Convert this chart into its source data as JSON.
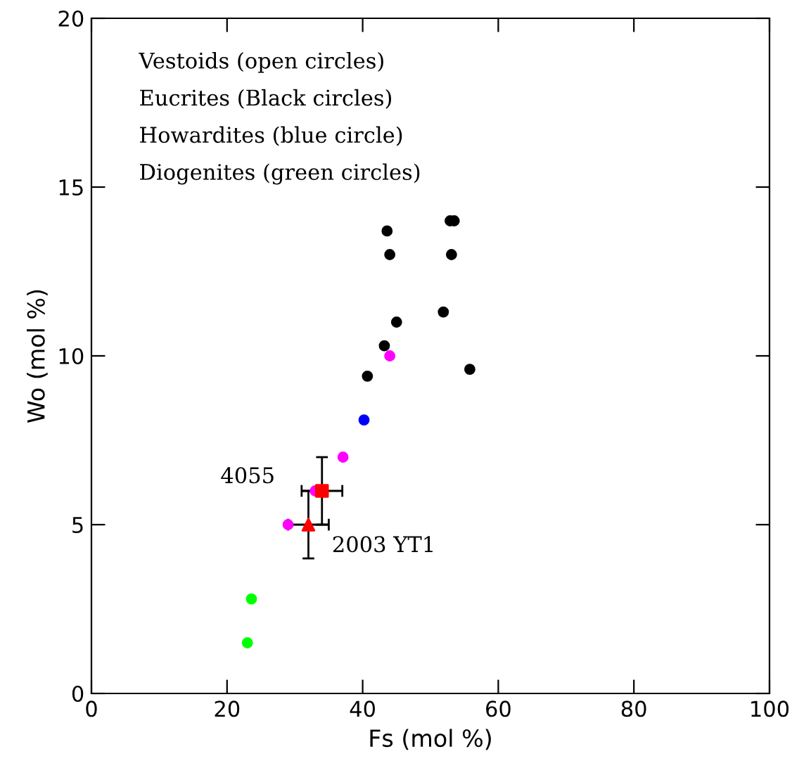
{
  "chart_data": {
    "type": "scatter",
    "xlabel": "Fs (mol %)",
    "ylabel": "Wo (mol %)",
    "xlim": [
      0,
      100
    ],
    "ylim": [
      0,
      20
    ],
    "xticks": [
      0,
      20,
      40,
      60,
      80,
      100
    ],
    "yticks": [
      0,
      5,
      10,
      15,
      20
    ],
    "grid": false,
    "legend": false,
    "annotations": [
      "Vestoids (open circles)",
      "Eucrites (Black circles)",
      "Howardites (blue circle)",
      "Diogenites (green circles)",
      {
        "text": "4055",
        "x": 34,
        "y": 6
      },
      {
        "text": "2003 YT1",
        "x": 32,
        "y": 5
      }
    ],
    "series": [
      {
        "color": "#000000",
        "marker": "circle",
        "x": [
          43.6,
          44.0,
          52.9,
          53.5,
          53.1,
          51.9,
          45.0,
          43.2,
          40.7,
          55.8
        ],
        "values": [
          13.7,
          13.0,
          14.0,
          14.0,
          13.0,
          11.3,
          11.0,
          10.3,
          9.4,
          9.6
        ]
      },
      {
        "color": "#0000ff",
        "marker": "circle",
        "x": [
          40.2
        ],
        "values": [
          8.1
        ]
      },
      {
        "color": "#00ff00",
        "marker": "circle",
        "x": [
          23.6,
          23.0
        ],
        "values": [
          2.8,
          1.5
        ]
      },
      {
        "color": "#ff00ff",
        "marker": "circle",
        "x": [
          44.0,
          37.1,
          33.0,
          29.0
        ],
        "values": [
          10.0,
          7.0,
          6.0,
          5.0
        ]
      },
      {
        "color": "#ff0000",
        "marker": "square",
        "x": [
          34
        ],
        "values": [
          6
        ],
        "errors": [
          1
        ],
        "xerrors": [
          3
        ]
      },
      {
        "color": "#ff0000",
        "marker": "triangle",
        "x": [
          32
        ],
        "values": [
          5
        ],
        "errors": [
          1
        ],
        "xerrors": [
          3
        ]
      }
    ]
  }
}
